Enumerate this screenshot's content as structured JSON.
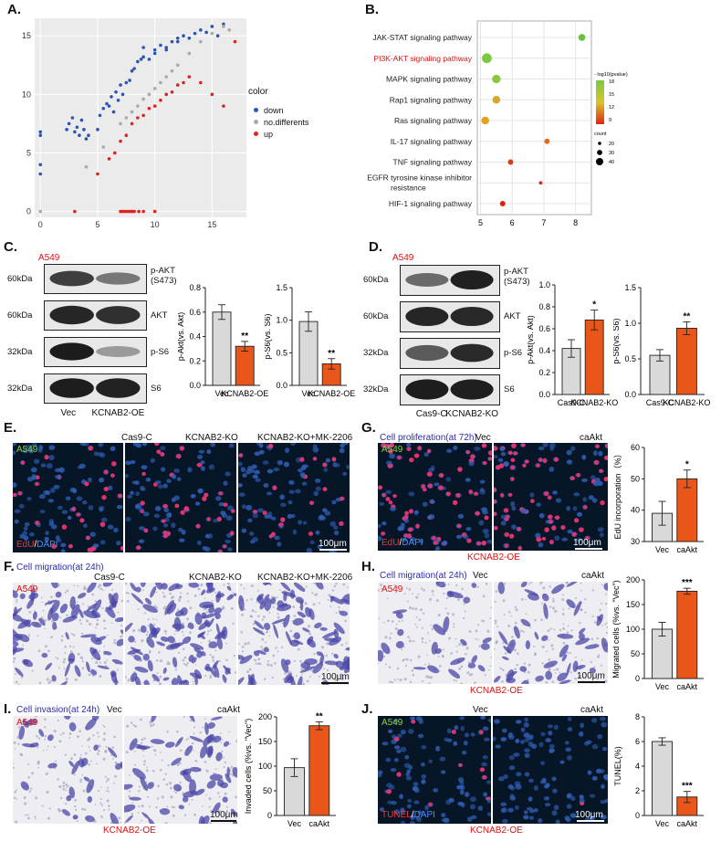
{
  "panels": {
    "A": {
      "letter": "A.",
      "legend_title": "color",
      "legend": [
        {
          "label": "down",
          "color": "#2a55b5"
        },
        {
          "label": "no.differents",
          "color": "#a9a9a9"
        },
        {
          "label": "up",
          "color": "#dd2222"
        }
      ],
      "x_ticks": [
        "0",
        "5",
        "10",
        "15"
      ],
      "y_ticks": [
        "0",
        "5",
        "10",
        "15"
      ]
    },
    "B": {
      "letter": "B.",
      "pathways": [
        {
          "name": "JAK-STAT signaling pathway",
          "x": 8.2,
          "size": 20,
          "color": "#6cc040",
          "highlight": false
        },
        {
          "name": "PI3K-AKT signaling pathway",
          "x": 5.2,
          "size": 40,
          "color": "#7ac943",
          "highlight": true
        },
        {
          "name": "MAPK signaling pathway",
          "x": 5.5,
          "size": 30,
          "color": "#8cc63e",
          "highlight": false
        },
        {
          "name": "Rap1 signaling pathway",
          "x": 5.5,
          "size": 25,
          "color": "#d4a72c",
          "highlight": false
        },
        {
          "name": "Ras signaling pathway",
          "x": 5.15,
          "size": 25,
          "color": "#e3a01e",
          "highlight": false
        },
        {
          "name": "IL-17 signaling pathway",
          "x": 7.1,
          "size": 12,
          "color": "#e66a1a",
          "highlight": false
        },
        {
          "name": "TNF signaling pathway",
          "x": 5.95,
          "size": 12,
          "color": "#e23a12",
          "highlight": false
        },
        {
          "name": "EGFR tyrosine kinase inhibitor resistance",
          "name_line1": "EGFR tyrosine kinase inhibitor",
          "name_line2": "resistance",
          "x": 6.9,
          "size": 5,
          "color": "#e02010",
          "highlight": false
        },
        {
          "name": "HIF-1 signaling pathway",
          "x": 5.7,
          "size": 12,
          "color": "#e02010",
          "highlight": false
        }
      ],
      "x_ticks": [
        "5",
        "6",
        "7",
        "8"
      ],
      "color_legend_title": "- log10(pvalue)",
      "color_ticks": [
        "18",
        "15",
        "12",
        "9"
      ],
      "size_legend_title": "count",
      "size_legend": [
        "20",
        "30",
        "40"
      ]
    },
    "C": {
      "letter": "C.",
      "cell_line": "A549",
      "blots": [
        {
          "kda": "60kDa",
          "label": "p-AKT\n(S473)",
          "label1": "p-AKT",
          "label2": "(S473)"
        },
        {
          "kda": "60kDa",
          "label": "AKT"
        },
        {
          "kda": "32kDa",
          "label": "p-S6"
        },
        {
          "kda": "32kDa",
          "label": "S6"
        }
      ],
      "lanes": [
        "Vec",
        "KCNAB2-OE"
      ],
      "bar1": {
        "ylabel": "p-Akt(vs. Akt)",
        "yticks": [
          "0.0",
          "0.2",
          "0.4",
          "0.6",
          "0.8"
        ],
        "ymax": 0.8,
        "categories": [
          "Vec",
          "KCNAB2-OE"
        ],
        "values": [
          0.6,
          0.32
        ],
        "errors": [
          0.06,
          0.04
        ],
        "sig": "**"
      },
      "bar2": {
        "ylabel": "p-S6(vs. S6)",
        "yticks": [
          "0.0",
          "0.5",
          "1.0",
          "1.5"
        ],
        "ymax": 1.5,
        "categories": [
          "Vec",
          "KCNAB2-OE"
        ],
        "values": [
          0.98,
          0.33
        ],
        "errors": [
          0.15,
          0.08
        ],
        "sig": "**"
      }
    },
    "D": {
      "letter": "D.",
      "cell_line": "A549",
      "blots": [
        {
          "kda": "60kDa",
          "label1": "p-AKT",
          "label2": "(S473)"
        },
        {
          "kda": "60kDa",
          "label": "AKT"
        },
        {
          "kda": "32kDa",
          "label": "p-S6"
        },
        {
          "kda": "32kDa",
          "label": "S6"
        }
      ],
      "lanes": [
        "Cas9-C",
        "KCNAB2-KO"
      ],
      "bar1": {
        "ylabel": "p-Akt(vs. Akt)",
        "yticks": [
          "0.0",
          "0.2",
          "0.4",
          "0.6",
          "0.8",
          "1.0"
        ],
        "ymax": 1.0,
        "categories": [
          "Cas9-C",
          "KCNAB2-KO"
        ],
        "values": [
          0.42,
          0.68
        ],
        "errors": [
          0.08,
          0.09
        ],
        "sig": "*"
      },
      "bar2": {
        "ylabel": "p-S6(vs. S6)",
        "yticks": [
          "0.0",
          "0.5",
          "1.0",
          "1.5"
        ],
        "ymax": 1.5,
        "categories": [
          "Cas9-C",
          "KCNAB2-KO"
        ],
        "values": [
          0.55,
          0.93
        ],
        "errors": [
          0.08,
          0.09
        ],
        "sig": "**"
      }
    },
    "E": {
      "letter": "E.",
      "cell_line": "A549",
      "conditions": [
        "Cas9-C",
        "KCNAB2-KO",
        "KCNAB2-KO+MK-2206"
      ],
      "stain_red": "EdU",
      "stain_sep": "/",
      "stain_blue": "DAPI",
      "scale": "100μm"
    },
    "F": {
      "letter": "F.",
      "title": "Cell migration(at 24h)",
      "cell_line": "A549",
      "conditions": [
        "Cas9-C",
        "KCNAB2-KO",
        "KCNAB2-KO+MK-2206"
      ],
      "scale": "100μm"
    },
    "G": {
      "letter": "G.",
      "title": "Cell proliferation(at 72h)",
      "cell_line": "A549",
      "conditions": [
        "Vec",
        "caAkt"
      ],
      "stain_red": "EdU",
      "stain_sep": "/",
      "stain_blue": "DAPI",
      "scale": "100μm",
      "footer": "KCNAB2-OE",
      "bar": {
        "ylabel": "EdU incorporation（%）",
        "yticks": [
          "30",
          "40",
          "50",
          "60"
        ],
        "ymin": 30,
        "ymax": 60,
        "categories": [
          "Vec",
          "caAkt"
        ],
        "values": [
          39,
          50
        ],
        "errors": [
          3.8,
          2.8
        ],
        "sig": "*"
      }
    },
    "H": {
      "letter": "H.",
      "title": "Cell migration(at 24h)",
      "cell_line": "A549",
      "conditions": [
        "Vec",
        "caAkt"
      ],
      "scale": "100μm",
      "footer": "KCNAB2-OE",
      "bar": {
        "ylabel": "Migrated cells (%vs. \"Vec\")",
        "yticks": [
          "0",
          "50",
          "100",
          "150",
          "200"
        ],
        "ymin": 0,
        "ymax": 200,
        "categories": [
          "Vec",
          "caAkt"
        ],
        "values": [
          100,
          177
        ],
        "errors": [
          14,
          6
        ],
        "sig": "***"
      }
    },
    "I": {
      "letter": "I.",
      "title": "Cell invasion(at 24h)",
      "cell_line": "A549",
      "conditions": [
        "Vec",
        "caAkt"
      ],
      "scale": "100μm",
      "footer": "KCNAB2-OE",
      "bar": {
        "ylabel": "Invaded cells (%vs. \"Vec\")",
        "yticks": [
          "0",
          "50",
          "100",
          "150",
          "200"
        ],
        "ymin": 0,
        "ymax": 200,
        "categories": [
          "Vec",
          "caAkt"
        ],
        "values": [
          97,
          182
        ],
        "errors": [
          18,
          8
        ],
        "sig": "**"
      }
    },
    "J": {
      "letter": "J.",
      "cell_line": "A549",
      "conditions": [
        "Vec",
        "caAkt"
      ],
      "stain_red": "TUNEL",
      "stain_sep": "/",
      "stain_blue": "DAPI",
      "scale": "100μm",
      "footer": "KCNAB2-OE",
      "bar": {
        "ylabel": "TUNEL(%)",
        "yticks": [
          "0",
          "2",
          "4",
          "6",
          "8"
        ],
        "ymin": 0,
        "ymax": 8,
        "categories": [
          "Vec",
          "caAkt"
        ],
        "values": [
          6.0,
          1.5
        ],
        "errors": [
          0.3,
          0.45
        ],
        "sig": "***"
      }
    }
  },
  "chart_data": [
    {
      "type": "scatter",
      "panel": "A",
      "legend_title": "color",
      "series": [
        {
          "name": "down",
          "color": "#2a55b5",
          "x": [
            0,
            0,
            0,
            0,
            2.3,
            2.5,
            2.8,
            3,
            3.2,
            3.4,
            3.6,
            3.8,
            4,
            4.2,
            5,
            5.2,
            5.5,
            5.8,
            6,
            6.2,
            6.4,
            6.6,
            6.8,
            7,
            7.2,
            7.5,
            7.8,
            8,
            8.2,
            8.5,
            8.8,
            9,
            9.5,
            10,
            10.5,
            11,
            11.5,
            12,
            12.5,
            13,
            13.5,
            14,
            14.5,
            15,
            15.5,
            16,
            9,
            10,
            11,
            12
          ],
          "y": [
            6.8,
            6.5,
            4,
            3.2,
            7,
            7.5,
            8,
            6.8,
            7.2,
            6.5,
            7.8,
            7,
            6.2,
            6.5,
            7,
            8.2,
            8.8,
            9.2,
            9,
            9.8,
            8.5,
            10.2,
            9.5,
            10.8,
            10,
            11,
            11.2,
            12,
            12.2,
            12.8,
            13,
            13.2,
            13,
            13.8,
            14.2,
            14,
            14.5,
            14.8,
            15,
            14.8,
            15.2,
            15.5,
            15.3,
            15.8,
            15,
            16,
            14,
            13.5,
            13.8,
            14.5
          ]
        },
        {
          "name": "no.differents",
          "color": "#a9a9a9",
          "x": [
            0,
            4,
            5.5,
            7,
            7.5,
            8,
            8.5,
            9,
            9.5,
            10,
            10.5,
            11,
            11.5,
            12,
            13,
            14,
            15,
            16,
            16.5
          ],
          "y": [
            0,
            3.8,
            5.5,
            7.5,
            8,
            8.5,
            9,
            9.6,
            10,
            10.5,
            11,
            11.5,
            12,
            12.5,
            13.5,
            14.5,
            15.2,
            15.8,
            15.5
          ]
        },
        {
          "name": "up",
          "color": "#dd2222",
          "x": [
            3,
            5,
            7,
            7.2,
            7.4,
            7.6,
            7.8,
            8,
            8.2,
            8.6,
            9,
            10,
            6,
            6.5,
            7,
            7.5,
            8,
            8.5,
            9,
            9.5,
            10,
            10.5,
            11,
            11.5,
            12,
            12.5,
            13,
            14,
            15,
            16,
            17
          ],
          "y": [
            0,
            3.2,
            0,
            0,
            0,
            0,
            0,
            0,
            0,
            0,
            0,
            0,
            4.5,
            5,
            6,
            6.5,
            7.5,
            8,
            8.2,
            8.8,
            9,
            9.5,
            10,
            10.2,
            10.8,
            11,
            11.5,
            11,
            10,
            9,
            14.5
          ]
        }
      ],
      "xlim": [
        -0.5,
        18
      ],
      "ylim": [
        -0.5,
        16.5
      ]
    },
    {
      "type": "scatter",
      "panel": "B",
      "categories": [
        "JAK-STAT signaling pathway",
        "PI3K-AKT signaling pathway",
        "MAPK signaling pathway",
        "Rap1 signaling pathway",
        "Ras signaling pathway",
        "IL-17 signaling pathway",
        "TNF signaling pathway",
        "EGFR tyrosine kinase inhibitor resistance",
        "HIF-1 signaling pathway"
      ],
      "x": [
        8.2,
        5.2,
        5.5,
        5.5,
        5.15,
        7.1,
        5.95,
        6.9,
        5.7
      ],
      "xlim": [
        4.9,
        8.5
      ]
    },
    {
      "type": "bar",
      "panel": "C",
      "categories": [
        "Vec",
        "KCNAB2-OE"
      ],
      "series": [
        {
          "values": [
            0.6,
            0.32
          ]
        }
      ],
      "ylabel": "p-Akt(vs. Akt)",
      "ylim": [
        0,
        0.8
      ]
    },
    {
      "type": "bar",
      "panel": "C",
      "categories": [
        "Vec",
        "KCNAB2-OE"
      ],
      "series": [
        {
          "values": [
            0.98,
            0.33
          ]
        }
      ],
      "ylabel": "p-S6(vs. S6)",
      "ylim": [
        0,
        1.5
      ]
    },
    {
      "type": "bar",
      "panel": "D",
      "categories": [
        "Cas9-C",
        "KCNAB2-KO"
      ],
      "series": [
        {
          "values": [
            0.42,
            0.68
          ]
        }
      ],
      "ylabel": "p-Akt(vs. Akt)",
      "ylim": [
        0,
        1.0
      ]
    },
    {
      "type": "bar",
      "panel": "D",
      "categories": [
        "Cas9-C",
        "KCNAB2-KO"
      ],
      "series": [
        {
          "values": [
            0.55,
            0.93
          ]
        }
      ],
      "ylabel": "p-S6(vs. S6)",
      "ylim": [
        0,
        1.5
      ]
    },
    {
      "type": "bar",
      "panel": "G",
      "categories": [
        "Vec",
        "caAkt"
      ],
      "series": [
        {
          "values": [
            39,
            50
          ]
        }
      ],
      "ylabel": "EdU incorporation（%）",
      "ylim": [
        30,
        60
      ]
    },
    {
      "type": "bar",
      "panel": "H",
      "categories": [
        "Vec",
        "caAkt"
      ],
      "series": [
        {
          "values": [
            100,
            177
          ]
        }
      ],
      "ylabel": "Migrated cells (%vs. \"Vec\")",
      "ylim": [
        0,
        200
      ]
    },
    {
      "type": "bar",
      "panel": "I",
      "categories": [
        "Vec",
        "caAkt"
      ],
      "series": [
        {
          "values": [
            97,
            182
          ]
        }
      ],
      "ylabel": "Invaded cells (%vs. \"Vec\")",
      "ylim": [
        0,
        200
      ]
    },
    {
      "type": "bar",
      "panel": "J",
      "categories": [
        "Vec",
        "caAkt"
      ],
      "series": [
        {
          "values": [
            6.0,
            1.5
          ]
        }
      ],
      "ylabel": "TUNEL(%)",
      "ylim": [
        0,
        8
      ]
    }
  ]
}
